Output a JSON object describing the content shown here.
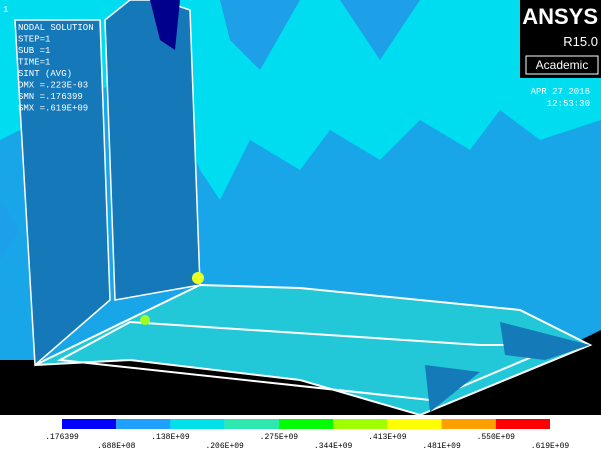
{
  "plot_index": "1",
  "info": {
    "lines": [
      "NODAL SOLUTION",
      "STEP=1",
      "SUB =1",
      "TIME=1",
      "SINT     (AVG)",
      "DMX =.223E-03",
      "SMN =.176399",
      "SMX =.619E+09"
    ]
  },
  "logo": {
    "name": "ANSYS",
    "release": "R15.0",
    "edition": "Academic"
  },
  "date": "APR 27 2016",
  "time": "12:53:30",
  "legend": {
    "labels": [
      ".176399",
      ".688E+08",
      ".138E+09",
      ".206E+09",
      ".275E+09",
      ".344E+09",
      ".413E+09",
      ".481E+09",
      ".550E+09",
      ".619E+09"
    ]
  }
}
